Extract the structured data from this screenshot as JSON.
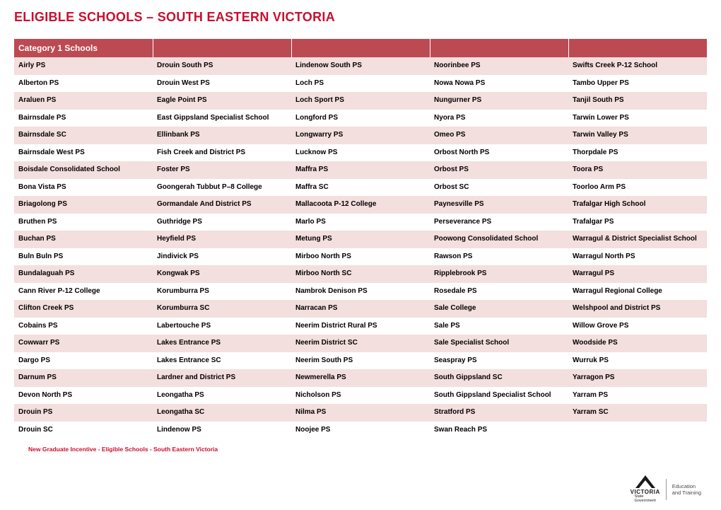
{
  "title": "ELIGIBLE SCHOOLS – SOUTH EASTERN VICTORIA",
  "table_header": "Category 1 Schools",
  "columns": 5,
  "colors": {
    "brand_red": "#c8102e",
    "header_bg": "#bc4a52",
    "row_odd_bg": "#f3dfde",
    "row_even_bg": "#ffffff",
    "text": "#000000"
  },
  "rows": [
    [
      "Airly PS",
      "Drouin South PS",
      "Lindenow South PS",
      "Noorinbee PS",
      "Swifts Creek P-12 School"
    ],
    [
      "Alberton PS",
      "Drouin West PS",
      "Loch PS",
      "Nowa Nowa PS",
      "Tambo Upper PS"
    ],
    [
      "Araluen PS",
      "Eagle Point PS",
      "Loch Sport PS",
      "Nungurner PS",
      "Tanjil South PS"
    ],
    [
      "Bairnsdale PS",
      "East Gippsland Specialist School",
      "Longford PS",
      "Nyora PS",
      "Tarwin Lower PS"
    ],
    [
      "Bairnsdale SC",
      "Ellinbank PS",
      "Longwarry PS",
      "Omeo PS",
      "Tarwin Valley PS"
    ],
    [
      "Bairnsdale West PS",
      "Fish Creek and District PS",
      "Lucknow PS",
      "Orbost North PS",
      "Thorpdale PS"
    ],
    [
      "Boisdale Consolidated School",
      "Foster PS",
      "Maffra PS",
      "Orbost PS",
      "Toora PS"
    ],
    [
      "Bona Vista PS",
      "Goongerah Tubbut P–8 College",
      "Maffra SC",
      "Orbost SC",
      "Toorloo Arm PS"
    ],
    [
      "Briagolong PS",
      "Gormandale And District PS",
      "Mallacoota P-12 College",
      "Paynesville PS",
      "Trafalgar High School"
    ],
    [
      "Bruthen PS",
      "Guthridge PS",
      "Marlo PS",
      "Perseverance PS",
      "Trafalgar PS"
    ],
    [
      "Buchan PS",
      "Heyfield PS",
      "Metung PS",
      "Poowong Consolidated School",
      "Warragul & District Specialist School"
    ],
    [
      "Buln Buln PS",
      "Jindivick PS",
      "Mirboo North PS",
      "Rawson PS",
      "Warragul North PS"
    ],
    [
      "Bundalaguah PS",
      "Kongwak PS",
      "Mirboo North SC",
      "Ripplebrook PS",
      "Warragul PS"
    ],
    [
      "Cann River P-12 College",
      "Korumburra PS",
      "Nambrok Denison PS",
      "Rosedale PS",
      "Warragul Regional College"
    ],
    [
      "Clifton Creek PS",
      "Korumburra SC",
      "Narracan PS",
      "Sale College",
      "Welshpool and District PS"
    ],
    [
      "Cobains PS",
      "Labertouche PS",
      "Neerim District Rural PS",
      "Sale PS",
      "Willow Grove PS"
    ],
    [
      "Cowwarr PS",
      "Lakes Entrance PS",
      "Neerim District SC",
      "Sale Specialist School",
      "Woodside PS"
    ],
    [
      "Dargo PS",
      "Lakes Entrance SC",
      "Neerim South PS",
      "Seaspray PS",
      "Wurruk PS"
    ],
    [
      "Darnum PS",
      "Lardner and District PS",
      "Newmerella PS",
      "South Gippsland SC",
      "Yarragon PS"
    ],
    [
      "Devon North PS",
      "Leongatha PS",
      "Nicholson PS",
      "South Gippsland Specialist School",
      "Yarram PS"
    ],
    [
      "Drouin PS",
      "Leongatha SC",
      "Nilma PS",
      "Stratford PS",
      "Yarram SC"
    ],
    [
      "Drouin SC",
      "Lindenow PS",
      "Noojee PS",
      "Swan Reach PS",
      ""
    ]
  ],
  "footer": "New Graduate Incentive - Eligible Schools - South Eastern Victoria",
  "logo": {
    "word": "VICTORIA",
    "sub1": "State",
    "sub2": "Government",
    "right1": "Education",
    "right2": "and Training"
  }
}
